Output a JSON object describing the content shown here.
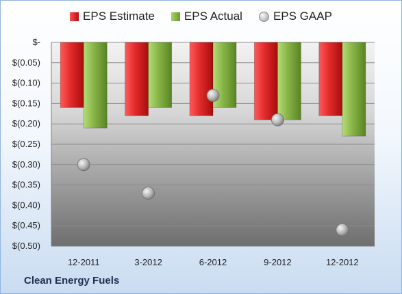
{
  "chart_data": {
    "type": "bar",
    "categories": [
      "12-2011",
      "3-2012",
      "6-2012",
      "9-2012",
      "12-2012"
    ],
    "series": [
      {
        "name": "EPS Estimate",
        "type": "bar",
        "values": [
          -0.16,
          -0.18,
          -0.18,
          -0.19,
          -0.18
        ],
        "color": "#d9252a"
      },
      {
        "name": "EPS Actual",
        "type": "bar",
        "values": [
          -0.21,
          -0.16,
          -0.16,
          -0.19,
          -0.23
        ],
        "color": "#7fac3f"
      },
      {
        "name": "EPS GAAP",
        "type": "scatter",
        "values": [
          -0.3,
          -0.37,
          -0.13,
          -0.19,
          -0.46
        ],
        "color": "#a6a6a6"
      }
    ],
    "yticks": [
      "$-",
      "$(0.05)",
      "$(0.10)",
      "$(0.15)",
      "$(0.20)",
      "$(0.25)",
      "$(0.30)",
      "$(0.35)",
      "$(0.40)",
      "$(0.45)",
      "$(0.50)"
    ],
    "ylim": [
      -0.5,
      0
    ],
    "grid": true,
    "legend": "top"
  },
  "footer": {
    "company": "Clean Energy Fuels"
  }
}
